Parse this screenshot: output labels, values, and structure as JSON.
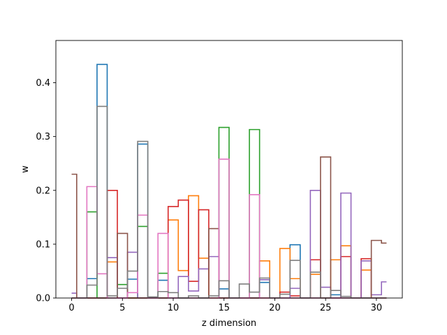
{
  "chart_data": {
    "type": "line",
    "style": "steps-mid",
    "xlabel": "z dimension",
    "ylabel": "w",
    "xlim": [
      -1.55,
      32.55
    ],
    "ylim": [
      0,
      0.4785
    ],
    "xticks": [
      0,
      5,
      10,
      15,
      20,
      25,
      30
    ],
    "yticks": [
      0.0,
      0.1,
      0.2,
      0.3,
      0.4
    ],
    "ytick_labels": [
      "0.0",
      "0.1",
      "0.2",
      "0.3",
      "0.4"
    ],
    "x": [
      0,
      1,
      2,
      3,
      4,
      5,
      6,
      7,
      8,
      9,
      10,
      11,
      12,
      13,
      14,
      15,
      16,
      17,
      18,
      19,
      20,
      21,
      22,
      23,
      24,
      25,
      26,
      27,
      28,
      29,
      30,
      31
    ],
    "series": [
      {
        "color": "#1f77b4",
        "values": [
          0,
          0,
          0.036,
          0.434,
          0,
          0,
          0.035,
          0.286,
          0,
          0.033,
          0,
          0,
          0,
          0,
          0,
          0.017,
          0,
          0,
          0,
          0.029,
          0,
          0,
          0.099,
          0,
          0,
          0,
          0.006,
          0,
          0,
          0,
          0,
          0
        ]
      },
      {
        "color": "#ff7f0e",
        "values": [
          0,
          0,
          0,
          0,
          0.067,
          0,
          0,
          0,
          0,
          0,
          0.145,
          0.051,
          0.19,
          0.074,
          0,
          0,
          0,
          0,
          0,
          0.069,
          0,
          0.092,
          0.036,
          0,
          0.044,
          0,
          0.071,
          0.097,
          0,
          0.052,
          0,
          0
        ]
      },
      {
        "color": "#2ca02c",
        "values": [
          0,
          0,
          0.16,
          0,
          0,
          0.025,
          0,
          0.133,
          0,
          0.046,
          0,
          0,
          0,
          0,
          0,
          0.317,
          0,
          0,
          0.313,
          0,
          0,
          0,
          0,
          0,
          0,
          0,
          0,
          0,
          0,
          0,
          0,
          0
        ]
      },
      {
        "color": "#d62728",
        "values": [
          0,
          0,
          0,
          0,
          0.2,
          0,
          0,
          0,
          0,
          0,
          0.17,
          0.182,
          0.031,
          0.164,
          0,
          0,
          0,
          0,
          0,
          0,
          0,
          0.011,
          0.004,
          0,
          0.071,
          0,
          0,
          0.077,
          0,
          0.073,
          0,
          0
        ]
      },
      {
        "color": "#9467bd",
        "values": [
          0.009,
          0,
          0,
          0,
          0.075,
          0,
          0.085,
          0,
          0,
          0,
          0,
          0.04,
          0.013,
          0.054,
          0.077,
          0,
          0,
          0,
          0,
          0.034,
          0,
          0,
          0.018,
          0,
          0.2,
          0.02,
          0,
          0.195,
          0,
          0.069,
          0.006,
          0.03
        ]
      },
      {
        "color": "#8c564b",
        "values": [
          0.23,
          0,
          0,
          0,
          0,
          0.12,
          0,
          0,
          0,
          0,
          0,
          0,
          0,
          0,
          0.129,
          0,
          0,
          0,
          0,
          0,
          0,
          0,
          0,
          0,
          0,
          0.262,
          0,
          0,
          0,
          0,
          0.107,
          0.102
        ]
      },
      {
        "color": "#e377c2",
        "values": [
          0,
          0,
          0.207,
          0.045,
          0,
          0,
          0.01,
          0.154,
          0,
          0.12,
          0,
          0,
          0,
          0,
          0,
          0.258,
          0,
          0,
          0.192,
          0,
          0,
          0,
          0,
          0,
          0,
          0,
          0,
          0,
          0,
          0,
          0,
          0
        ]
      },
      {
        "color": "#7f7f7f",
        "values": [
          0,
          0,
          0.024,
          0.356,
          0.004,
          0.018,
          0.05,
          0.291,
          0.002,
          0.012,
          0.01,
          0,
          0.004,
          0,
          0.004,
          0.032,
          0,
          0.026,
          0.011,
          0.037,
          0,
          0.007,
          0.07,
          0,
          0.048,
          0,
          0.014,
          0.003,
          0,
          0,
          0,
          0
        ]
      }
    ]
  }
}
